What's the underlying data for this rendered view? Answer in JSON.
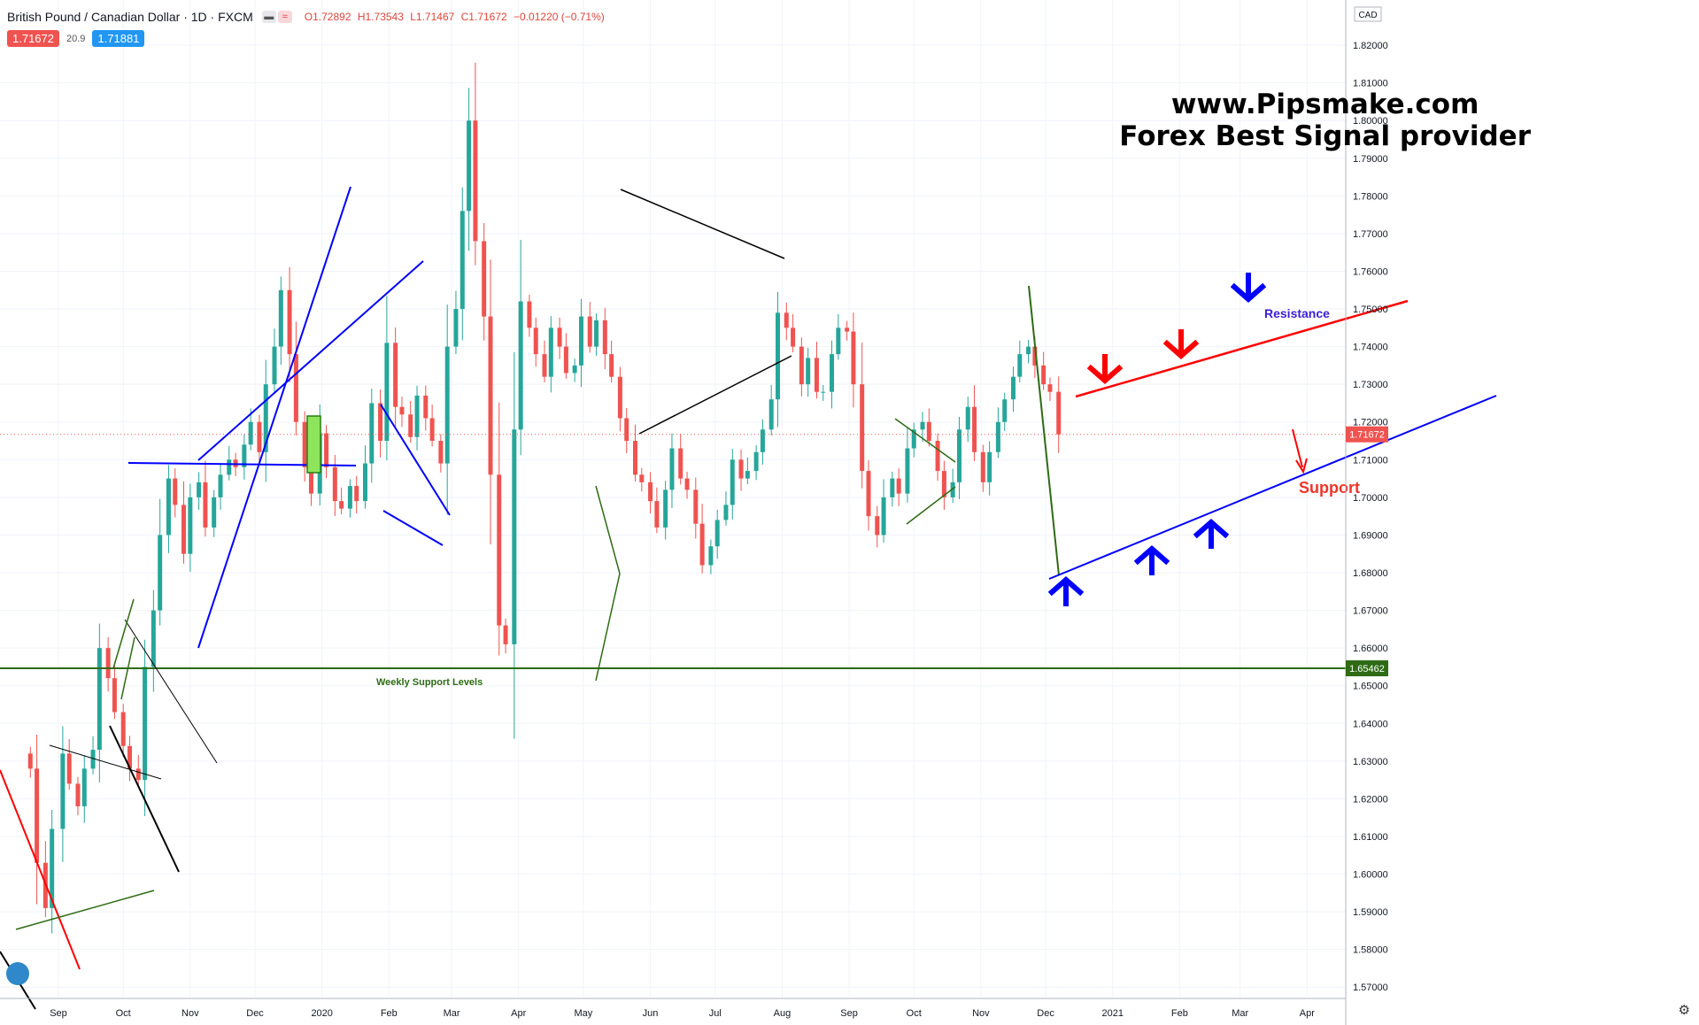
{
  "header": {
    "symbol": "British Pound / Canadian Dollar · 1D · FXCM",
    "open": "O1.72892",
    "high": "H1.73543",
    "low": "L1.71467",
    "close": "C1.71672",
    "change": "−0.01220 (−0.71%)",
    "sell_price": "1.71672",
    "spread": "20.9",
    "buy_price": "1.71881"
  },
  "watermark": {
    "line1": "www.Pipsmake.com",
    "line2": "Forex Best Signal provider"
  },
  "price_axis": {
    "currency": "CAD",
    "last_price_tag": "1.71672",
    "support_price_tag": "1.65462"
  },
  "annotations": {
    "resistance": "Resistance",
    "support": "Support",
    "weekly_support": "Weekly Support Levels"
  },
  "colors": {
    "up": "#26a69a",
    "down": "#ef5350",
    "blue": "#0000ff",
    "red": "#ff0000",
    "green": "#2e6b14"
  },
  "chart_data": {
    "type": "candlestick",
    "title": "British Pound / Canadian Dollar · 1D · FXCM",
    "ylim": [
      1.567,
      1.832
    ],
    "y_ticks": [
      "1.57000",
      "1.58000",
      "1.59000",
      "1.60000",
      "1.61000",
      "1.62000",
      "1.63000",
      "1.64000",
      "1.65000",
      "1.66000",
      "1.67000",
      "1.68000",
      "1.69000",
      "1.70000",
      "1.71000",
      "1.72000",
      "1.73000",
      "1.74000",
      "1.75000",
      "1.76000",
      "1.77000",
      "1.78000",
      "1.79000",
      "1.80000",
      "1.81000",
      "1.82000"
    ],
    "x_labels": [
      {
        "date": "2019-09-01",
        "label": "Sep"
      },
      {
        "date": "2019-10-01",
        "label": "Oct"
      },
      {
        "date": "2019-11-01",
        "label": "Nov"
      },
      {
        "date": "2019-12-01",
        "label": "Dec"
      },
      {
        "date": "2020-01-01",
        "label": "2020"
      },
      {
        "date": "2020-02-01",
        "label": "Feb"
      },
      {
        "date": "2020-03-01",
        "label": "Mar"
      },
      {
        "date": "2020-04-01",
        "label": "Apr"
      },
      {
        "date": "2020-05-01",
        "label": "May"
      },
      {
        "date": "2020-06-01",
        "label": "Jun"
      },
      {
        "date": "2020-07-01",
        "label": "Jul"
      },
      {
        "date": "2020-08-01",
        "label": "Aug"
      },
      {
        "date": "2020-09-01",
        "label": "Sep"
      },
      {
        "date": "2020-10-01",
        "label": "Oct"
      },
      {
        "date": "2020-11-01",
        "label": "Nov"
      },
      {
        "date": "2020-12-01",
        "label": "Dec"
      },
      {
        "date": "2021-01-01",
        "label": "2021"
      },
      {
        "date": "2021-02-01",
        "label": "Feb"
      },
      {
        "date": "2021-03-01",
        "label": "Mar"
      },
      {
        "date": "2021-04-01",
        "label": "Apr"
      }
    ],
    "last_price": 1.71672,
    "support_level": 1.65462,
    "series": [
      {
        "name": "Close",
        "points": [
          {
            "date": "2019-08-19",
            "close": 1.628
          },
          {
            "date": "2019-08-22",
            "close": 1.603
          },
          {
            "date": "2019-08-26",
            "close": 1.591
          },
          {
            "date": "2019-08-29",
            "close": 1.612
          },
          {
            "date": "2019-09-03",
            "close": 1.632
          },
          {
            "date": "2019-09-06",
            "close": 1.624
          },
          {
            "date": "2019-09-10",
            "close": 1.618
          },
          {
            "date": "2019-09-13",
            "close": 1.628
          },
          {
            "date": "2019-09-17",
            "close": 1.633
          },
          {
            "date": "2019-09-20",
            "close": 1.66
          },
          {
            "date": "2019-09-24",
            "close": 1.652
          },
          {
            "date": "2019-09-27",
            "close": 1.643
          },
          {
            "date": "2019-10-01",
            "close": 1.634
          },
          {
            "date": "2019-10-04",
            "close": 1.628
          },
          {
            "date": "2019-10-08",
            "close": 1.625
          },
          {
            "date": "2019-10-11",
            "close": 1.655
          },
          {
            "date": "2019-10-15",
            "close": 1.67
          },
          {
            "date": "2019-10-18",
            "close": 1.69
          },
          {
            "date": "2019-10-22",
            "close": 1.705
          },
          {
            "date": "2019-10-25",
            "close": 1.698
          },
          {
            "date": "2019-10-29",
            "close": 1.685
          },
          {
            "date": "2019-11-01",
            "close": 1.7
          },
          {
            "date": "2019-11-05",
            "close": 1.704
          },
          {
            "date": "2019-11-08",
            "close": 1.692
          },
          {
            "date": "2019-11-12",
            "close": 1.7
          },
          {
            "date": "2019-11-15",
            "close": 1.706
          },
          {
            "date": "2019-11-19",
            "close": 1.71
          },
          {
            "date": "2019-11-22",
            "close": 1.708
          },
          {
            "date": "2019-11-26",
            "close": 1.714
          },
          {
            "date": "2019-11-29",
            "close": 1.72
          },
          {
            "date": "2019-12-03",
            "close": 1.712
          },
          {
            "date": "2019-12-06",
            "close": 1.73
          },
          {
            "date": "2019-12-10",
            "close": 1.74
          },
          {
            "date": "2019-12-13",
            "close": 1.755
          },
          {
            "date": "2019-12-17",
            "close": 1.738
          },
          {
            "date": "2019-12-20",
            "close": 1.72
          },
          {
            "date": "2019-12-24",
            "close": 1.708
          },
          {
            "date": "2019-12-27",
            "close": 1.701
          },
          {
            "date": "2019-12-31",
            "close": 1.717
          },
          {
            "date": "2020-01-03",
            "close": 1.708
          },
          {
            "date": "2020-01-07",
            "close": 1.699
          },
          {
            "date": "2020-01-10",
            "close": 1.697
          },
          {
            "date": "2020-01-14",
            "close": 1.703
          },
          {
            "date": "2020-01-17",
            "close": 1.699
          },
          {
            "date": "2020-01-21",
            "close": 1.709
          },
          {
            "date": "2020-01-24",
            "close": 1.725
          },
          {
            "date": "2020-01-28",
            "close": 1.715
          },
          {
            "date": "2020-01-31",
            "close": 1.741
          },
          {
            "date": "2020-02-04",
            "close": 1.724
          },
          {
            "date": "2020-02-07",
            "close": 1.722
          },
          {
            "date": "2020-02-11",
            "close": 1.716
          },
          {
            "date": "2020-02-14",
            "close": 1.727
          },
          {
            "date": "2020-02-18",
            "close": 1.721
          },
          {
            "date": "2020-02-21",
            "close": 1.715
          },
          {
            "date": "2020-02-25",
            "close": 1.709
          },
          {
            "date": "2020-02-28",
            "close": 1.74
          },
          {
            "date": "2020-03-03",
            "close": 1.75
          },
          {
            "date": "2020-03-06",
            "close": 1.776
          },
          {
            "date": "2020-03-09",
            "close": 1.8
          },
          {
            "date": "2020-03-12",
            "close": 1.768
          },
          {
            "date": "2020-03-16",
            "close": 1.748
          },
          {
            "date": "2020-03-19",
            "close": 1.706
          },
          {
            "date": "2020-03-23",
            "close": 1.666
          },
          {
            "date": "2020-03-26",
            "close": 1.661
          },
          {
            "date": "2020-03-30",
            "close": 1.718
          },
          {
            "date": "2020-04-02",
            "close": 1.752
          },
          {
            "date": "2020-04-06",
            "close": 1.745
          },
          {
            "date": "2020-04-09",
            "close": 1.738
          },
          {
            "date": "2020-04-13",
            "close": 1.732
          },
          {
            "date": "2020-04-16",
            "close": 1.745
          },
          {
            "date": "2020-04-20",
            "close": 1.74
          },
          {
            "date": "2020-04-23",
            "close": 1.733
          },
          {
            "date": "2020-04-27",
            "close": 1.735
          },
          {
            "date": "2020-04-30",
            "close": 1.748
          },
          {
            "date": "2020-05-04",
            "close": 1.74
          },
          {
            "date": "2020-05-07",
            "close": 1.747
          },
          {
            "date": "2020-05-11",
            "close": 1.738
          },
          {
            "date": "2020-05-14",
            "close": 1.732
          },
          {
            "date": "2020-05-18",
            "close": 1.721
          },
          {
            "date": "2020-05-21",
            "close": 1.715
          },
          {
            "date": "2020-05-25",
            "close": 1.706
          },
          {
            "date": "2020-05-28",
            "close": 1.704
          },
          {
            "date": "2020-06-01",
            "close": 1.699
          },
          {
            "date": "2020-06-04",
            "close": 1.692
          },
          {
            "date": "2020-06-08",
            "close": 1.702
          },
          {
            "date": "2020-06-11",
            "close": 1.713
          },
          {
            "date": "2020-06-15",
            "close": 1.705
          },
          {
            "date": "2020-06-18",
            "close": 1.702
          },
          {
            "date": "2020-06-22",
            "close": 1.693
          },
          {
            "date": "2020-06-25",
            "close": 1.682
          },
          {
            "date": "2020-06-29",
            "close": 1.687
          },
          {
            "date": "2020-07-02",
            "close": 1.694
          },
          {
            "date": "2020-07-06",
            "close": 1.698
          },
          {
            "date": "2020-07-09",
            "close": 1.71
          },
          {
            "date": "2020-07-13",
            "close": 1.705
          },
          {
            "date": "2020-07-16",
            "close": 1.707
          },
          {
            "date": "2020-07-20",
            "close": 1.712
          },
          {
            "date": "2020-07-23",
            "close": 1.718
          },
          {
            "date": "2020-07-27",
            "close": 1.726
          },
          {
            "date": "2020-07-30",
            "close": 1.749
          },
          {
            "date": "2020-08-03",
            "close": 1.745
          },
          {
            "date": "2020-08-06",
            "close": 1.74
          },
          {
            "date": "2020-08-10",
            "close": 1.73
          },
          {
            "date": "2020-08-13",
            "close": 1.737
          },
          {
            "date": "2020-08-17",
            "close": 1.728
          },
          {
            "date": "2020-08-20",
            "close": 1.728
          },
          {
            "date": "2020-08-24",
            "close": 1.738
          },
          {
            "date": "2020-08-27",
            "close": 1.745
          },
          {
            "date": "2020-08-31",
            "close": 1.744
          },
          {
            "date": "2020-09-03",
            "close": 1.73
          },
          {
            "date": "2020-09-07",
            "close": 1.707
          },
          {
            "date": "2020-09-10",
            "close": 1.695
          },
          {
            "date": "2020-09-14",
            "close": 1.69
          },
          {
            "date": "2020-09-17",
            "close": 1.7
          },
          {
            "date": "2020-09-21",
            "close": 1.705
          },
          {
            "date": "2020-09-24",
            "close": 1.701
          },
          {
            "date": "2020-09-28",
            "close": 1.713
          },
          {
            "date": "2020-10-01",
            "close": 1.718
          },
          {
            "date": "2020-10-05",
            "close": 1.72
          },
          {
            "date": "2020-10-08",
            "close": 1.715
          },
          {
            "date": "2020-10-12",
            "close": 1.707
          },
          {
            "date": "2020-10-15",
            "close": 1.7
          },
          {
            "date": "2020-10-19",
            "close": 1.704
          },
          {
            "date": "2020-10-22",
            "close": 1.718
          },
          {
            "date": "2020-10-26",
            "close": 1.724
          },
          {
            "date": "2020-10-29",
            "close": 1.712
          },
          {
            "date": "2020-11-02",
            "close": 1.704
          },
          {
            "date": "2020-11-05",
            "close": 1.712
          },
          {
            "date": "2020-11-09",
            "close": 1.72
          },
          {
            "date": "2020-11-12",
            "close": 1.726
          },
          {
            "date": "2020-11-16",
            "close": 1.732
          },
          {
            "date": "2020-11-19",
            "close": 1.738
          },
          {
            "date": "2020-11-23",
            "close": 1.74
          },
          {
            "date": "2020-11-26",
            "close": 1.735
          },
          {
            "date": "2020-11-30",
            "close": 1.73
          },
          {
            "date": "2020-12-03",
            "close": 1.728
          },
          {
            "date": "2020-12-07",
            "close": 1.71672
          }
        ]
      }
    ]
  }
}
